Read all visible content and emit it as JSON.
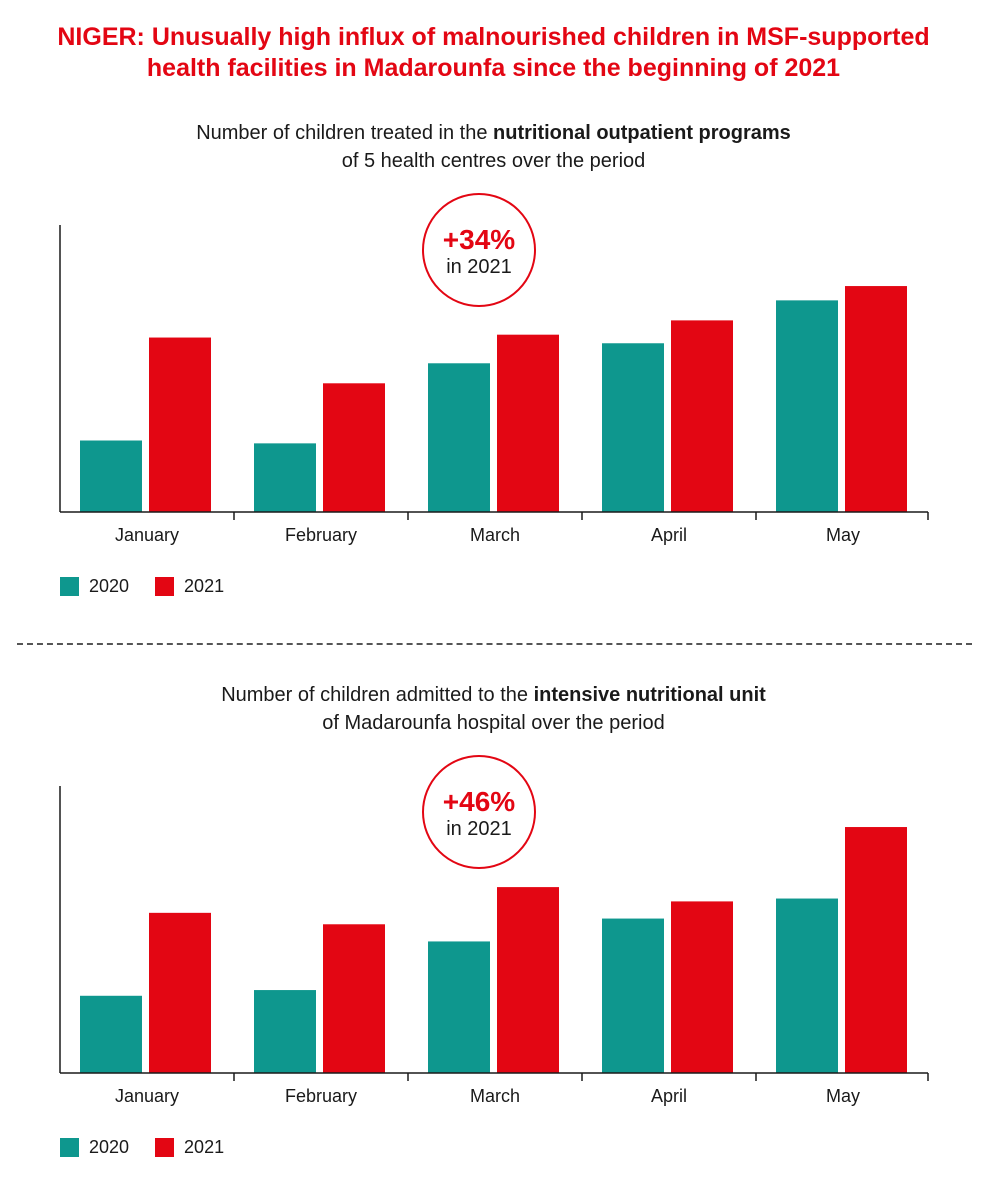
{
  "title": {
    "line1": "NIGER: Unusually high influx of malnourished children in MSF-supported",
    "line2": "health facilities in Madarounfa since the beginning of 2021"
  },
  "colors": {
    "s2020": "#0e978e",
    "s2021": "#e30613",
    "accent": "#e30613"
  },
  "legend": {
    "label_2020": "2020",
    "label_2021": "2021"
  },
  "charts": [
    {
      "subtitle_pre": "Number of children treated in the ",
      "subtitle_bold": "nutritional outpatient programs",
      "subtitle_line2": "of 5 health centres over the period",
      "badge_pct": "+34%",
      "badge_year": "in 2021"
    },
    {
      "subtitle_pre": "Number of children admitted to the ",
      "subtitle_bold": "intensive nutritional unit",
      "subtitle_line2": "of Madarounfa hospital over the period",
      "badge_pct": "+46%",
      "badge_year": "in 2021"
    }
  ],
  "chart_data": [
    {
      "type": "bar",
      "categories": [
        "January",
        "February",
        "March",
        "April",
        "May"
      ],
      "series": [
        {
          "name": "2020",
          "values": [
            25,
            24,
            52,
            59,
            74
          ]
        },
        {
          "name": "2021",
          "values": [
            61,
            45,
            62,
            67,
            79
          ]
        }
      ],
      "ylim": [
        0,
        100
      ],
      "legend": "bottom-left",
      "grid": false
    },
    {
      "type": "bar",
      "categories": [
        "January",
        "February",
        "March",
        "April",
        "May"
      ],
      "series": [
        {
          "name": "2020",
          "values": [
            27,
            29,
            46,
            54,
            61
          ]
        },
        {
          "name": "2021",
          "values": [
            56,
            52,
            65,
            60,
            86
          ]
        }
      ],
      "ylim": [
        0,
        100
      ],
      "legend": "bottom-left",
      "grid": false
    }
  ]
}
